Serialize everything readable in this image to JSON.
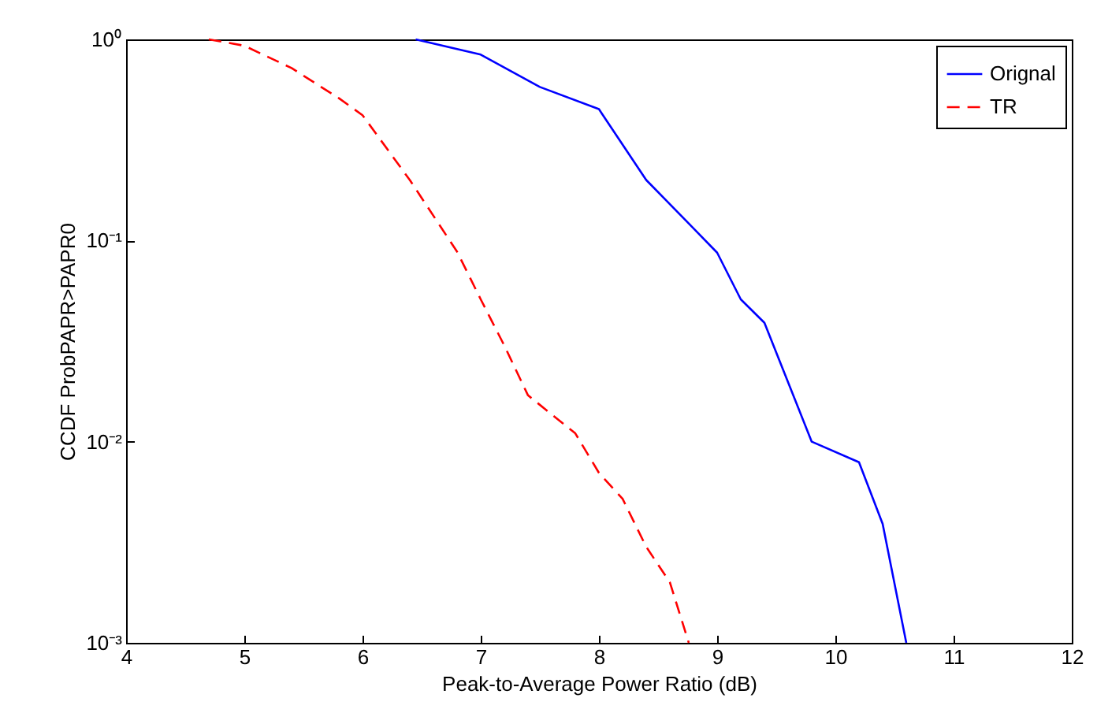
{
  "chart_data": {
    "type": "line",
    "xlabel": "Peak-to-Average Power Ratio (dB)",
    "ylabel": "CCDF ProbPAPR>PAPR0",
    "log": "y",
    "xlim": [
      4,
      12
    ],
    "xticks": [
      4,
      5,
      6,
      7,
      8,
      9,
      10,
      11,
      12
    ],
    "ylim": [
      0.001,
      1
    ],
    "yticks": [
      {
        "value": 0.001,
        "label": "10⁻³"
      },
      {
        "value": 0.01,
        "label": "10⁻²"
      },
      {
        "value": 0.1,
        "label": "10⁻¹"
      },
      {
        "value": 1,
        "label": "10⁰"
      }
    ],
    "grid": false,
    "legend": "top right",
    "series": [
      {
        "name": "Orignal",
        "color": "#0000ff",
        "line_style": "solid",
        "x": [
          6.45,
          7,
          7.5,
          8,
          8.4,
          8.8,
          9,
          9.2,
          9.4,
          9.8,
          10.2,
          10.4,
          10.6
        ],
        "values": [
          1,
          0.84,
          0.58,
          0.45,
          0.2,
          0.115,
          0.087,
          0.051,
          0.039,
          0.01,
          0.0079,
          0.0039,
          0.001
        ]
      },
      {
        "name": "TR",
        "color": "#ff0000",
        "line_style": "dashed",
        "x": [
          4.7,
          5,
          5.4,
          5.8,
          6,
          6.4,
          6.8,
          7,
          7.2,
          7.4,
          7.8,
          8,
          8.2,
          8.4,
          8.6,
          8.76
        ],
        "values": [
          1,
          0.93,
          0.72,
          0.51,
          0.42,
          0.2,
          0.088,
          0.051,
          0.03,
          0.017,
          0.011,
          0.007,
          0.0052,
          0.003,
          0.002,
          0.001
        ]
      }
    ]
  }
}
